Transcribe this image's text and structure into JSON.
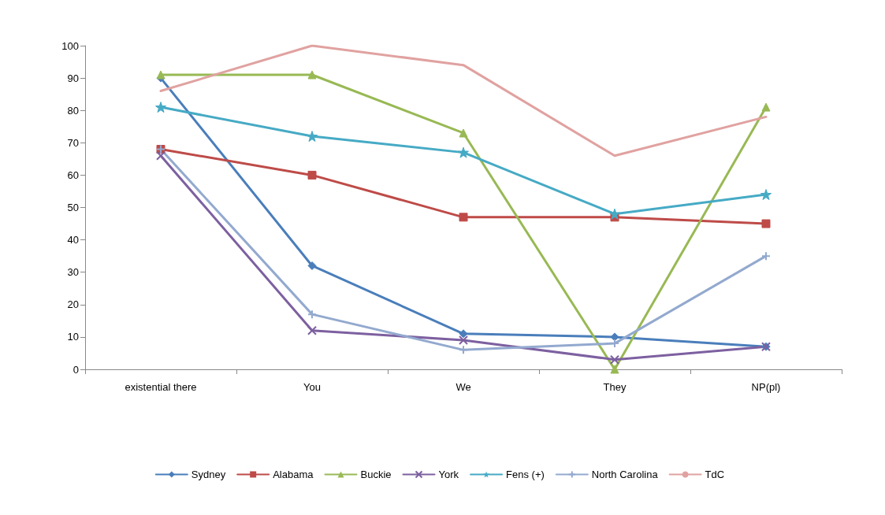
{
  "chart_data": {
    "type": "line",
    "categories": [
      "existential there",
      "You",
      "We",
      "They",
      "NP(pl)"
    ],
    "series": [
      {
        "name": "Sydney",
        "color": "#4a7ebb",
        "marker": "diamond",
        "values": [
          90,
          32,
          11,
          10,
          7
        ]
      },
      {
        "name": "Alabama",
        "color": "#be4b48",
        "marker": "square",
        "values": [
          68,
          60,
          47,
          47,
          45
        ]
      },
      {
        "name": "Buckie",
        "color": "#98b954",
        "marker": "triangle",
        "values": [
          91,
          91,
          73,
          0,
          81
        ]
      },
      {
        "name": "York",
        "color": "#7d60a0",
        "marker": "cross",
        "values": [
          66,
          12,
          9,
          3,
          7
        ]
      },
      {
        "name": "Fens (+)",
        "color": "#46aac5",
        "marker": "star",
        "values": [
          81,
          72,
          67,
          48,
          54
        ]
      },
      {
        "name": "North Carolina",
        "color": "#93a9cf",
        "marker": "plus",
        "values": [
          68,
          17,
          6,
          8,
          35
        ]
      },
      {
        "name": "TdC",
        "color": "#e0a2a0",
        "marker": "none",
        "values": [
          86,
          100,
          94,
          66,
          78
        ]
      }
    ],
    "ylim": [
      0,
      100
    ],
    "yticks": [
      0,
      10,
      20,
      30,
      40,
      50,
      60,
      70,
      80,
      90,
      100
    ],
    "grid": false,
    "legend": "bottom",
    "line_style": "solid"
  }
}
